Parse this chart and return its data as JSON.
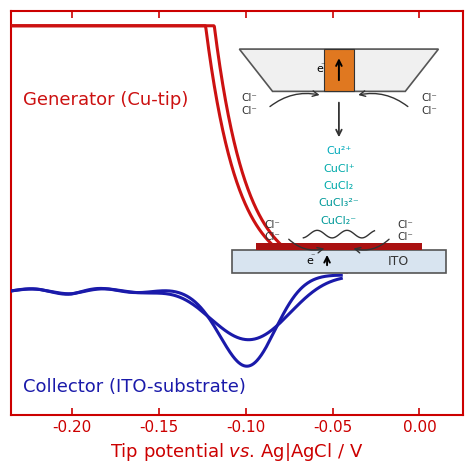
{
  "xlabel": "Tip potential $\\it{vs}$. Ag|AgCl / V",
  "xlim": [
    -0.235,
    0.025
  ],
  "ylim": [
    -4.8,
    9.0
  ],
  "x_ticks": [
    -0.2,
    -0.15,
    -0.1,
    -0.05,
    0.0
  ],
  "axis_color": "#cc0000",
  "red_label": "Generator (Cu-tip)",
  "blue_label": "Collector (ITO-substrate)",
  "red_color": "#cc1111",
  "blue_color": "#1a1aaa",
  "bg_color": "#ffffff",
  "orange_color": "#e07820",
  "cyan_color": "#00aabb",
  "label_fontsize": 13,
  "tick_fontsize": 11,
  "xlabel_fontsize": 13
}
